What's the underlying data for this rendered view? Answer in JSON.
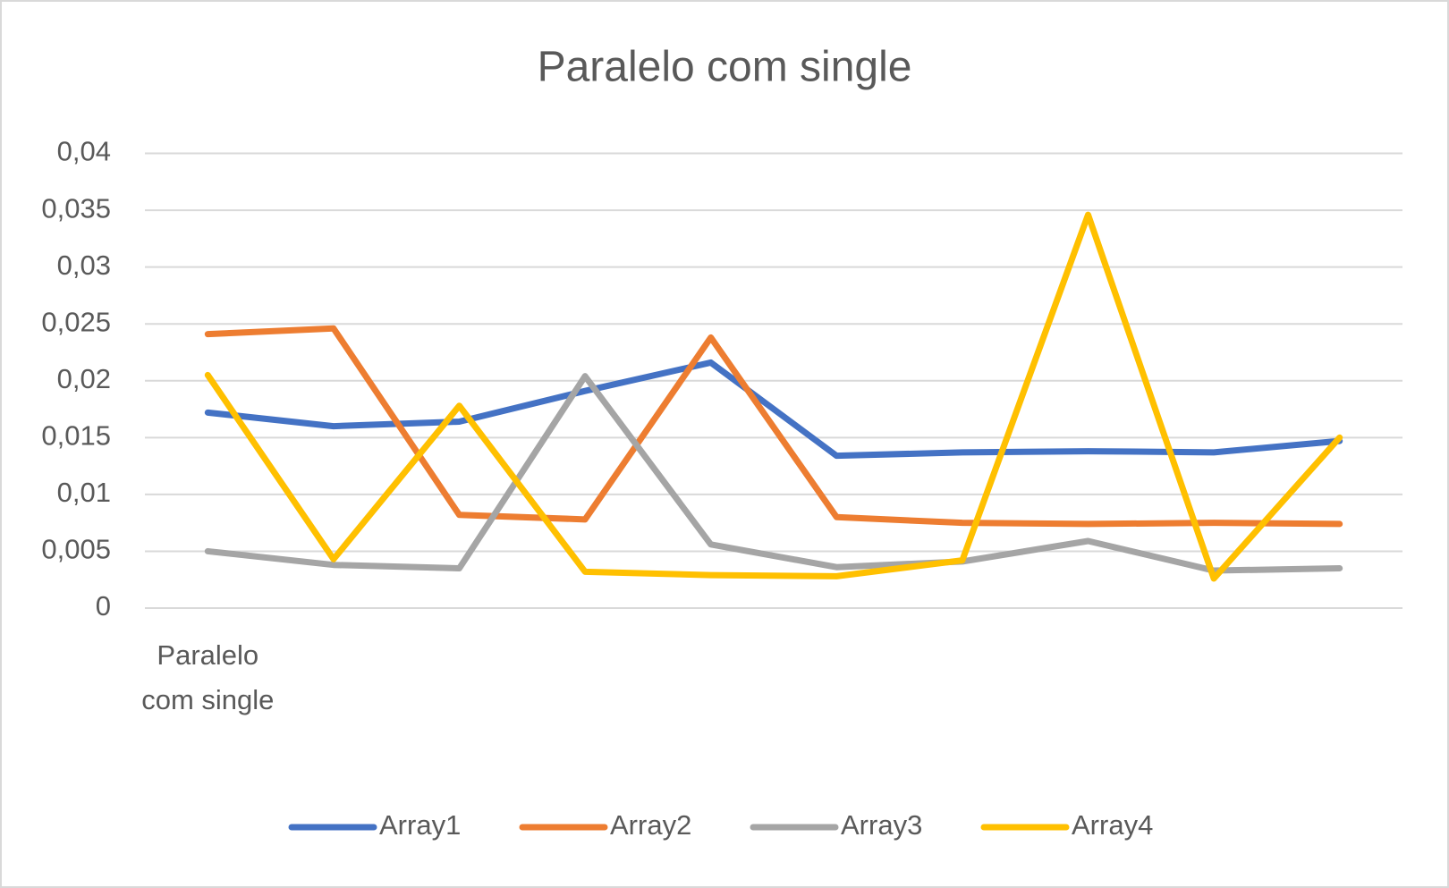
{
  "chart_data": {
    "type": "line",
    "title": "Paralelo com single",
    "categories": [
      "Paralelo com single",
      null,
      null,
      null,
      null,
      null,
      null,
      null,
      null,
      null
    ],
    "series": [
      {
        "name": "Array1",
        "color": "#4472c4",
        "values": [
          0.0172,
          0.016,
          0.0164,
          0.0191,
          0.0216,
          0.0134,
          0.0137,
          0.0138,
          0.0137,
          0.0147
        ]
      },
      {
        "name": "Array2",
        "color": "#ed7d31",
        "values": [
          0.0241,
          0.0246,
          0.0082,
          0.0078,
          0.0238,
          0.008,
          0.0075,
          0.0074,
          0.0075,
          0.0074
        ]
      },
      {
        "name": "Array3",
        "color": "#a5a5a5",
        "values": [
          0.005,
          0.0038,
          0.0035,
          0.0204,
          0.0056,
          0.0036,
          0.0041,
          0.0059,
          0.0033,
          0.0035
        ]
      },
      {
        "name": "Array4",
        "color": "#ffc000",
        "values": [
          0.0205,
          0.0043,
          0.0178,
          0.0032,
          0.0029,
          0.0028,
          0.0042,
          0.0346,
          0.0026,
          0.015
        ]
      }
    ],
    "ylim": [
      0,
      0.04
    ],
    "yticks": [
      0,
      {
        "value": 0.005,
        "label": "0,005"
      },
      {
        "value": 0.01,
        "label": "0,01"
      },
      {
        "value": 0.015,
        "label": "0,015"
      },
      {
        "value": 0.02,
        "label": "0,02"
      },
      {
        "value": 0.025,
        "label": "0,025"
      },
      {
        "value": 0.03,
        "label": "0,03"
      },
      {
        "value": 0.035,
        "label": "0,035"
      },
      {
        "value": 0.04,
        "label": "0,04"
      }
    ],
    "grid": true,
    "legend": "bottom"
  }
}
